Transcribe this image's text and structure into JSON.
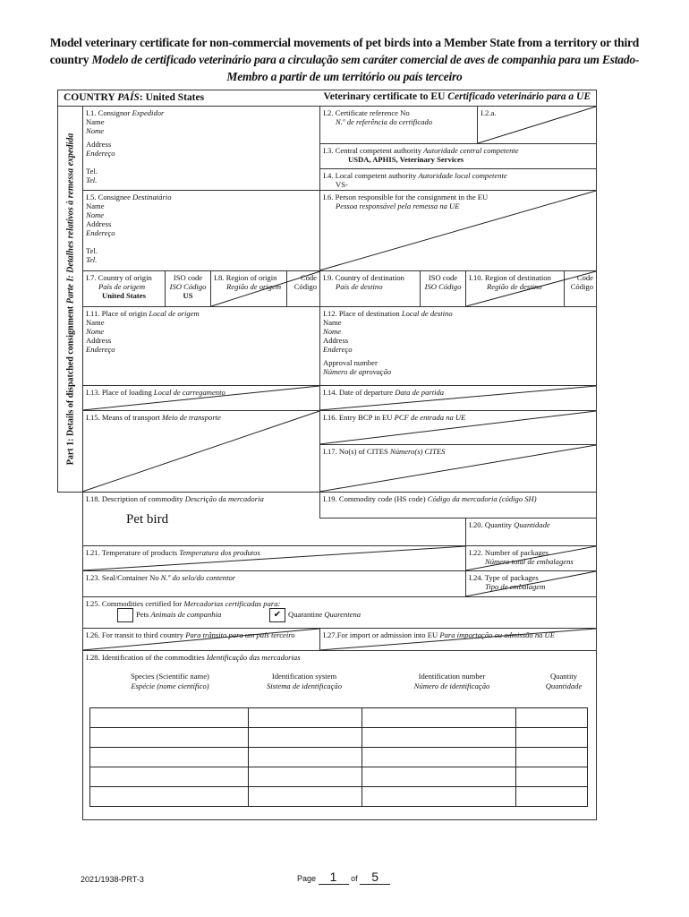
{
  "title": {
    "en_line": "Model veterinary certificate for non-commercial movements of pet birds into a Member State from a territory or third country",
    "pt_line": "Modelo de certificado veterinário para a circulação sem caráter comercial de aves de companhia para um Estado-Membro a partir de um território ou país terceiro"
  },
  "header": {
    "country_label": "COUNTRY",
    "country_label_pt": "PAÍS",
    "country_value": ": United States",
    "cert_label": "Veterinary certificate to EU",
    "cert_label_pt": "Certificado veterinário para a UE"
  },
  "part1_label": "Part 1: Details of dispatched consignment",
  "part1_label_pt": "Parte I: Detalhes relativos à remessa expedida",
  "fields": {
    "i1": {
      "label": "I.1. Consignor",
      "label_pt": "Expedidor",
      "name": "Name",
      "name_pt": "Nome",
      "address": "Address",
      "address_pt": "Endereço",
      "tel": "Tel.",
      "tel_pt": "Tel."
    },
    "i2": {
      "label": "I.2. Certificate reference No",
      "label_pt": "N.º de referência do certificado"
    },
    "i2a": {
      "label": "I.2.a."
    },
    "i3": {
      "label": "I.3. Central competent authority",
      "label_pt": "Autoridade central competente",
      "value": "USDA, APHIS, Veterinary Services"
    },
    "i4": {
      "label": "I.4. Local competent authority",
      "label_pt": "Autoridade local competente",
      "value": "VS-"
    },
    "i5": {
      "label": "I.5. Consignee",
      "label_pt": "Destinatário",
      "name": "Name",
      "name_pt": "Nome",
      "address": "Address",
      "address_pt": "Endereço",
      "tel": "Tel.",
      "tel_pt": "Tel."
    },
    "i6": {
      "label": "I.6. Person responsible for the consignment in the EU",
      "label_pt": "Pessoa responsável pela remessa na UE"
    },
    "i7": {
      "label": "I.7. Country of origin",
      "label_pt": "País de origem",
      "iso": "ISO code",
      "iso_pt": "ISO Código",
      "value": "United States",
      "iso_value": "US"
    },
    "i8": {
      "label": "I.8. Region of origin",
      "label_pt": "Região de origem",
      "code": "Code",
      "code_pt": "Código"
    },
    "i9": {
      "label": "I.9. Country of destination",
      "label_pt": "País de destino",
      "iso": "ISO code",
      "iso_pt": "ISO Código"
    },
    "i10": {
      "label": "I.10. Region of destination",
      "label_pt": "Região de destino",
      "code": "Code",
      "code_pt": "Código"
    },
    "i11": {
      "label": "I.11. Place of origin",
      "label_pt": "Local de origem",
      "name": "Name",
      "name_pt": "Nome",
      "address": "Address",
      "address_pt": "Endereço"
    },
    "i12": {
      "label": "I.12. Place of destination",
      "label_pt": "Local de destino",
      "name": "Name",
      "name_pt": "Nome",
      "address": "Address",
      "address_pt": "Endereço",
      "approval": "Approval number",
      "approval_pt": "Número de aprovação"
    },
    "i13": {
      "label": "I.13. Place of loading",
      "label_pt": "Local de carregamento"
    },
    "i14": {
      "label": "I.14. Date of departure",
      "label_pt": "Data de partida"
    },
    "i15": {
      "label": "I.15. Means of transport",
      "label_pt": "Meio de transporte"
    },
    "i16": {
      "label": "I.16. Entry BCP in EU",
      "label_pt": "PCF de entrada na UE"
    },
    "i17": {
      "label": "I.17. No(s) of CITES",
      "label_pt": "Número(s) CITES"
    },
    "i18": {
      "label": "I.18. Description of commodity",
      "label_pt": "Descrição da mercadoria",
      "value": "Pet bird"
    },
    "i19": {
      "label": "I.19. Commodity code (HS code)",
      "label_pt": "Código da mercadoria (código SH)"
    },
    "i20": {
      "label": "I.20. Quantity",
      "label_pt": "Quantidade"
    },
    "i21": {
      "label": "I.21. Temperature of products",
      "label_pt": "Temperatura dos produtos"
    },
    "i22": {
      "label": "I.22. Number of packages",
      "label_pt": "Número total de embalagens"
    },
    "i23": {
      "label": "I.23. Seal/Container No",
      "label_pt": "N.º do selo/do contentor"
    },
    "i24": {
      "label": "I.24. Type of packages",
      "label_pt": "Tipo de embalagem"
    },
    "i25": {
      "label": "I.25. Commodities certified for",
      "label_pt": "Mercadorias certificadas para:",
      "pets": "Pets",
      "pets_pt": "Animais de companhia",
      "pets_checked": false,
      "quarantine": "Quarantine",
      "quarantine_pt": "Quarentena",
      "quarantine_checked": true,
      "check_mark": "✔"
    },
    "i26": {
      "label": "I.26. For transit to third country",
      "label_pt": "Para trânsito para um país terceiro"
    },
    "i27": {
      "label": "I.27.For import or admission into EU",
      "label_pt": "Para importação ou admissão na UE"
    },
    "i28": {
      "label": "I.28. Identification of the commodities",
      "label_pt": "Identificação das mercadorias",
      "columns": [
        {
          "en": "Species (Scientific name)",
          "pt": "Espécie (nome científico)"
        },
        {
          "en": "Identification system",
          "pt": "Sistema de identificação"
        },
        {
          "en": "Identification number",
          "pt": "Número de identificação"
        },
        {
          "en": "Quantity",
          "pt": "Quantidade"
        }
      ],
      "rows": [
        [
          "",
          "",
          "",
          ""
        ],
        [
          "",
          "",
          "",
          ""
        ],
        [
          "",
          "",
          "",
          ""
        ],
        [
          "",
          "",
          "",
          ""
        ],
        [
          "",
          "",
          "",
          ""
        ]
      ]
    }
  },
  "footer": {
    "doc_code": "2021/1938-PRT-3",
    "page_label": "Page",
    "page": "1",
    "of_label": "of",
    "total": "5"
  }
}
